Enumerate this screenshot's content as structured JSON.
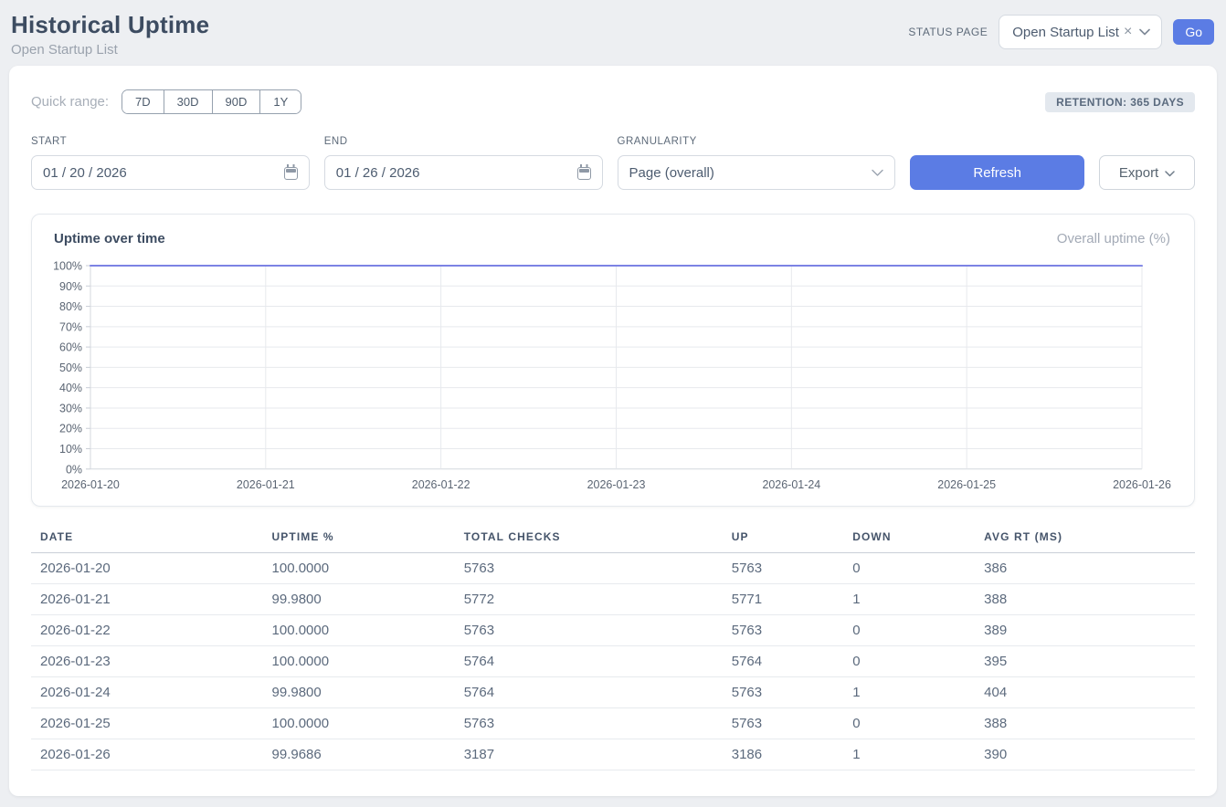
{
  "colors": {
    "accent_blue": "#5b7ce4",
    "line_purple": "#7c82e4",
    "badge_bg": "#e3e8ee",
    "page_bg": "#edeff2"
  },
  "header": {
    "title": "Historical Uptime",
    "subtitle": "Open Startup List",
    "status_page": {
      "label": "STATUS PAGE",
      "selected": "Open Startup List",
      "clear_icon": "×",
      "go": "Go"
    }
  },
  "controls": {
    "quick_range_label": "Quick range:",
    "quick_ranges": [
      "7D",
      "30D",
      "90D",
      "1Y"
    ],
    "retention_badge": "RETENTION: 365 DAYS",
    "fields": {
      "start": {
        "label": "START",
        "value": "01 / 20 / 2026"
      },
      "end": {
        "label": "END",
        "value": "01 / 26 / 2026"
      },
      "granularity": {
        "label": "GRANULARITY",
        "value": "Page (overall)"
      }
    },
    "refresh": "Refresh",
    "export": "Export"
  },
  "chart": {
    "title": "Uptime over time",
    "legend": "Overall uptime (%)"
  },
  "chart_data": {
    "type": "line",
    "title": "Uptime over time",
    "x": [
      "2026-01-20",
      "2026-01-21",
      "2026-01-22",
      "2026-01-23",
      "2026-01-24",
      "2026-01-25",
      "2026-01-26"
    ],
    "series": [
      {
        "name": "Overall uptime (%)",
        "values": [
          100.0,
          99.98,
          100.0,
          100.0,
          99.98,
          100.0,
          99.9686
        ],
        "color": "#7c82e4"
      }
    ],
    "xlabel": "",
    "ylabel": "",
    "ylim": [
      0,
      100
    ],
    "ytick_step": 10,
    "ytick_suffix": "%",
    "grid": true,
    "legend_position": "top-right"
  },
  "table": {
    "columns": [
      "DATE",
      "UPTIME %",
      "TOTAL CHECKS",
      "UP",
      "DOWN",
      "AVG RT (MS)"
    ],
    "rows": [
      [
        "2026-01-20",
        "100.0000",
        "5763",
        "5763",
        "0",
        "386"
      ],
      [
        "2026-01-21",
        "99.9800",
        "5772",
        "5771",
        "1",
        "388"
      ],
      [
        "2026-01-22",
        "100.0000",
        "5763",
        "5763",
        "0",
        "389"
      ],
      [
        "2026-01-23",
        "100.0000",
        "5764",
        "5764",
        "0",
        "395"
      ],
      [
        "2026-01-24",
        "99.9800",
        "5764",
        "5763",
        "1",
        "404"
      ],
      [
        "2026-01-25",
        "100.0000",
        "5763",
        "5763",
        "0",
        "388"
      ],
      [
        "2026-01-26",
        "99.9686",
        "3187",
        "3186",
        "1",
        "390"
      ]
    ]
  }
}
